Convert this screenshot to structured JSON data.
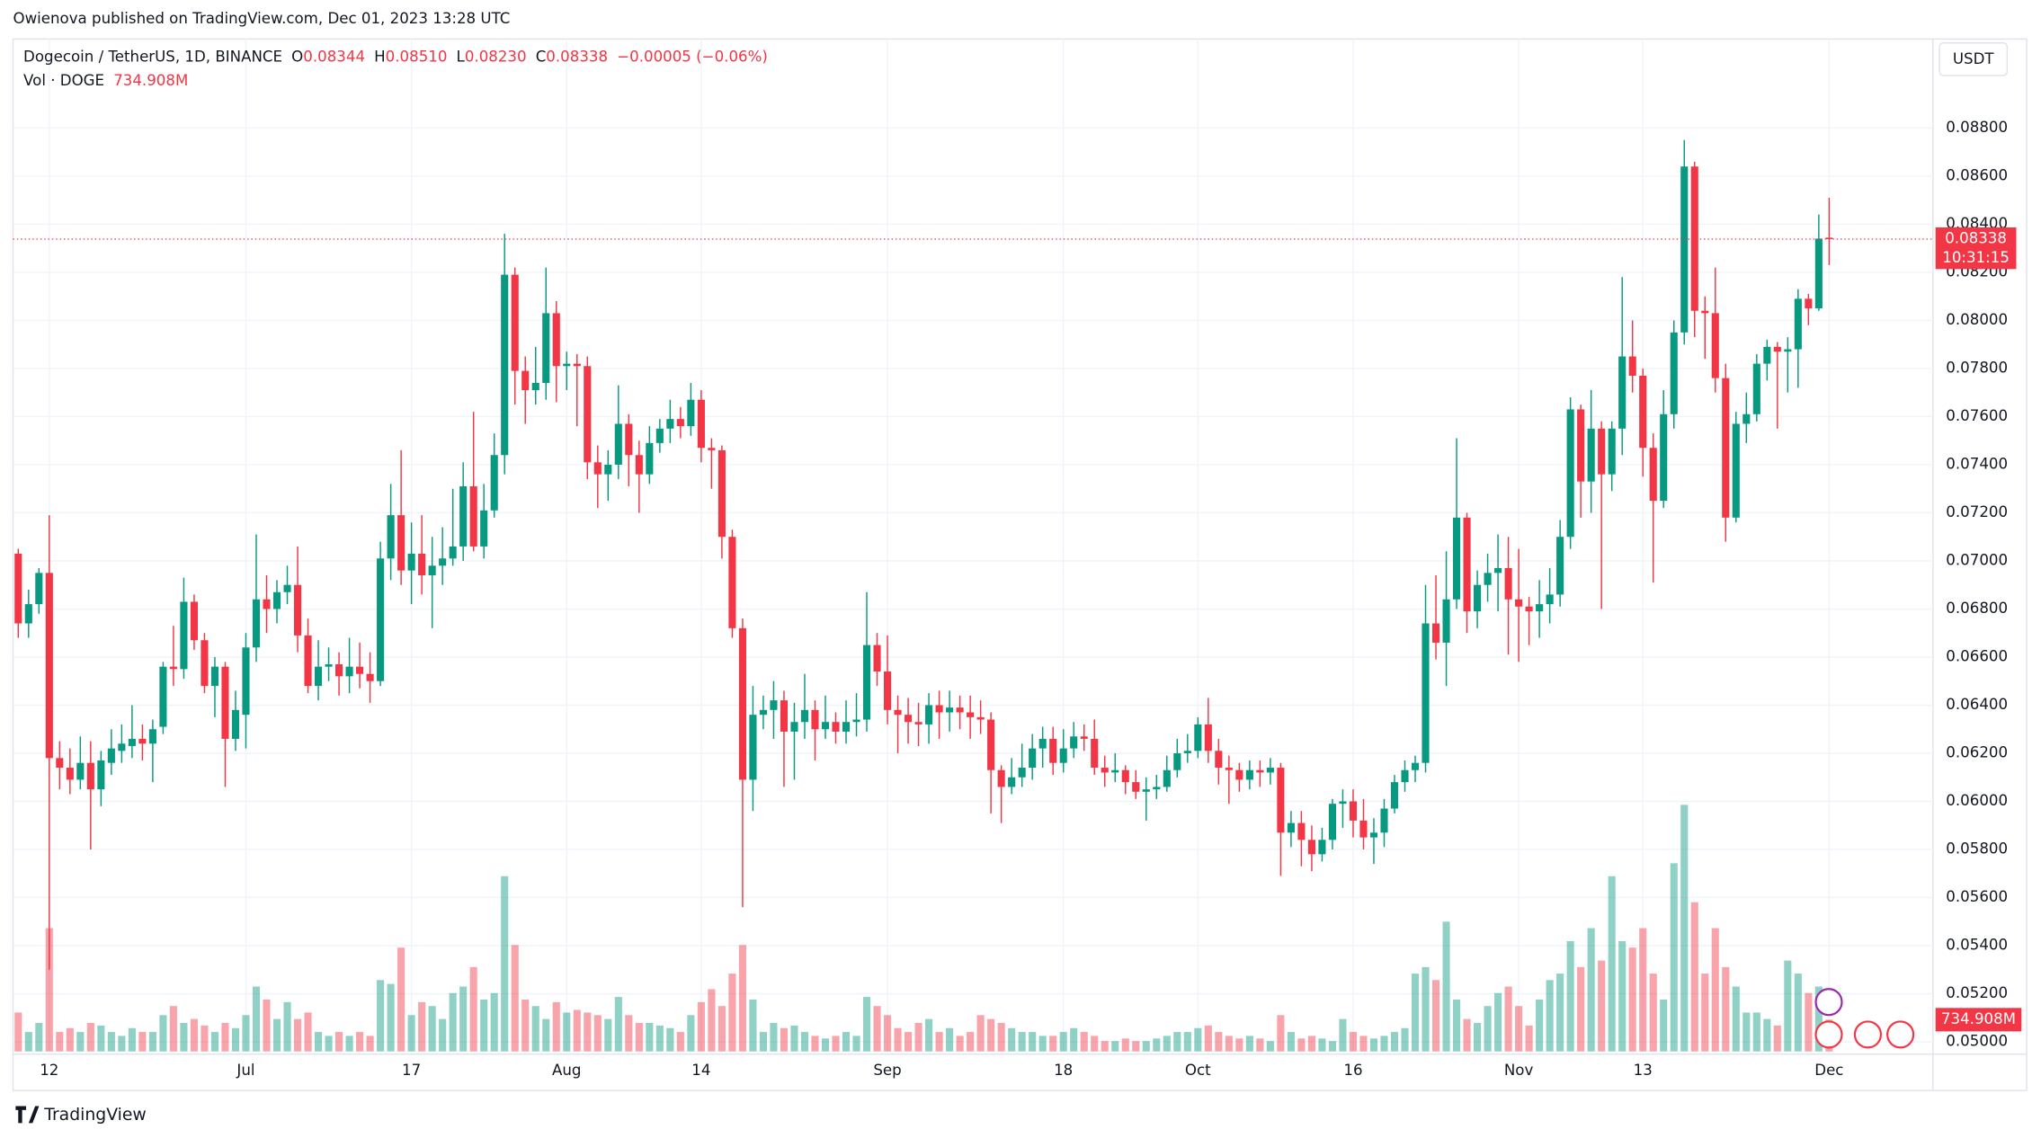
{
  "header": {
    "published": "Owienova published on TradingView.com, Dec 01, 2023 13:28 UTC",
    "brand": "TradingView",
    "currency_button": "USDT"
  },
  "chart_data": {
    "type": "candlestick",
    "symbol": "Dogecoin / TetherUS, 1D, BINANCE",
    "legend_items": [
      {
        "key": "O",
        "value": "0.08344"
      },
      {
        "key": "H",
        "value": "0.08510"
      },
      {
        "key": "L",
        "value": "0.08230"
      },
      {
        "key": "C",
        "value": "0.08338"
      }
    ],
    "change": "−0.00005 (−0.06%)",
    "countdown": "10:31:15",
    "up_color": "#089981",
    "down_color": "#f23645",
    "grid": true,
    "ylim": [
      0.0496,
      0.0917
    ],
    "yticks": [
      {
        "value": 0.05,
        "label": "0.05000"
      },
      {
        "value": 0.052,
        "label": "0.05200"
      },
      {
        "value": 0.054,
        "label": "0.05400"
      },
      {
        "value": 0.056,
        "label": "0.05600"
      },
      {
        "value": 0.058,
        "label": "0.05800"
      },
      {
        "value": 0.06,
        "label": "0.06000"
      },
      {
        "value": 0.062,
        "label": "0.06200"
      },
      {
        "value": 0.064,
        "label": "0.06400"
      },
      {
        "value": 0.066,
        "label": "0.06600"
      },
      {
        "value": 0.068,
        "label": "0.06800"
      },
      {
        "value": 0.07,
        "label": "0.07000"
      },
      {
        "value": 0.072,
        "label": "0.07200"
      },
      {
        "value": 0.074,
        "label": "0.07400"
      },
      {
        "value": 0.076,
        "label": "0.07600"
      },
      {
        "value": 0.078,
        "label": "0.07800"
      },
      {
        "value": 0.08,
        "label": "0.08000"
      },
      {
        "value": 0.082,
        "label": "0.08200"
      },
      {
        "value": 0.084,
        "label": "0.08400"
      },
      {
        "value": 0.086,
        "label": "0.08600"
      },
      {
        "value": 0.088,
        "label": "0.08800"
      }
    ],
    "xticks": [
      {
        "value": 3,
        "label": "12"
      },
      {
        "value": 22,
        "label": "Jul"
      },
      {
        "value": 38,
        "label": "17"
      },
      {
        "value": 53,
        "label": "Aug"
      },
      {
        "value": 66,
        "label": "14"
      },
      {
        "value": 84,
        "label": "Sep"
      },
      {
        "value": 101,
        "label": "18"
      },
      {
        "value": 114,
        "label": "Oct"
      },
      {
        "value": 129,
        "label": "16"
      },
      {
        "value": 145,
        "label": "Nov"
      },
      {
        "value": 157,
        "label": "13"
      },
      {
        "value": 175,
        "label": "Dec"
      }
    ],
    "ohlc": [
      [
        0.0703,
        0.0705,
        0.0668,
        0.0674
      ],
      [
        0.0674,
        0.0688,
        0.0668,
        0.0682
      ],
      [
        0.0682,
        0.0697,
        0.0678,
        0.0695
      ],
      [
        0.0695,
        0.0719,
        0.053,
        0.0618
      ],
      [
        0.0618,
        0.0625,
        0.0605,
        0.0614
      ],
      [
        0.0614,
        0.0622,
        0.0603,
        0.0609
      ],
      [
        0.0609,
        0.0627,
        0.0605,
        0.0616
      ],
      [
        0.0616,
        0.0625,
        0.058,
        0.0605
      ],
      [
        0.0605,
        0.0621,
        0.0598,
        0.0617
      ],
      [
        0.0616,
        0.063,
        0.0611,
        0.0622
      ],
      [
        0.0621,
        0.0632,
        0.0616,
        0.0624
      ],
      [
        0.0623,
        0.064,
        0.0618,
        0.0626
      ],
      [
        0.0626,
        0.0632,
        0.0617,
        0.0624
      ],
      [
        0.0624,
        0.0634,
        0.0608,
        0.063
      ],
      [
        0.0631,
        0.0658,
        0.0628,
        0.0656
      ],
      [
        0.0656,
        0.0673,
        0.0648,
        0.0655
      ],
      [
        0.0655,
        0.0693,
        0.0651,
        0.0683
      ],
      [
        0.0683,
        0.0686,
        0.0663,
        0.0667
      ],
      [
        0.0667,
        0.067,
        0.0645,
        0.0648
      ],
      [
        0.0648,
        0.066,
        0.0635,
        0.0656
      ],
      [
        0.0656,
        0.0658,
        0.0606,
        0.0626
      ],
      [
        0.0626,
        0.0646,
        0.0621,
        0.0638
      ],
      [
        0.0636,
        0.067,
        0.0622,
        0.0664
      ],
      [
        0.0664,
        0.0711,
        0.0658,
        0.0684
      ],
      [
        0.0684,
        0.0694,
        0.067,
        0.068
      ],
      [
        0.068,
        0.0692,
        0.0674,
        0.0687
      ],
      [
        0.0687,
        0.0698,
        0.0682,
        0.069
      ],
      [
        0.069,
        0.0706,
        0.0662,
        0.0669
      ],
      [
        0.0669,
        0.0676,
        0.0645,
        0.0648
      ],
      [
        0.0648,
        0.0667,
        0.0642,
        0.0656
      ],
      [
        0.0656,
        0.0664,
        0.065,
        0.0657
      ],
      [
        0.0657,
        0.0662,
        0.0644,
        0.0652
      ],
      [
        0.0652,
        0.0668,
        0.0645,
        0.0656
      ],
      [
        0.0656,
        0.0666,
        0.0647,
        0.0653
      ],
      [
        0.0653,
        0.0662,
        0.0641,
        0.065
      ],
      [
        0.065,
        0.0708,
        0.0648,
        0.0701
      ],
      [
        0.0701,
        0.0732,
        0.0692,
        0.0719
      ],
      [
        0.0719,
        0.0746,
        0.069,
        0.0696
      ],
      [
        0.0696,
        0.0716,
        0.0682,
        0.0703
      ],
      [
        0.0703,
        0.0719,
        0.0686,
        0.0694
      ],
      [
        0.0694,
        0.071,
        0.0672,
        0.0698
      ],
      [
        0.0698,
        0.0714,
        0.069,
        0.0701
      ],
      [
        0.0701,
        0.073,
        0.0698,
        0.0706
      ],
      [
        0.0706,
        0.0741,
        0.07,
        0.0731
      ],
      [
        0.0731,
        0.0762,
        0.0704,
        0.0706
      ],
      [
        0.0706,
        0.0732,
        0.0701,
        0.0721
      ],
      [
        0.0721,
        0.0753,
        0.0718,
        0.0744
      ],
      [
        0.0744,
        0.0836,
        0.0736,
        0.0819
      ],
      [
        0.0819,
        0.0822,
        0.0765,
        0.0779
      ],
      [
        0.0779,
        0.0785,
        0.0757,
        0.0771
      ],
      [
        0.0771,
        0.0789,
        0.0765,
        0.0774
      ],
      [
        0.0774,
        0.0822,
        0.0767,
        0.0803
      ],
      [
        0.0803,
        0.0808,
        0.0766,
        0.0781
      ],
      [
        0.0781,
        0.0787,
        0.0771,
        0.0782
      ],
      [
        0.0782,
        0.0786,
        0.0756,
        0.0781
      ],
      [
        0.0781,
        0.0785,
        0.0734,
        0.0741
      ],
      [
        0.0741,
        0.0748,
        0.0722,
        0.0736
      ],
      [
        0.0736,
        0.0746,
        0.0725,
        0.074
      ],
      [
        0.074,
        0.0773,
        0.0734,
        0.0757
      ],
      [
        0.0757,
        0.0761,
        0.0731,
        0.0744
      ],
      [
        0.0744,
        0.075,
        0.072,
        0.0736
      ],
      [
        0.0736,
        0.0756,
        0.0732,
        0.0749
      ],
      [
        0.0749,
        0.0759,
        0.0745,
        0.0755
      ],
      [
        0.0755,
        0.0767,
        0.0749,
        0.0759
      ],
      [
        0.0759,
        0.0764,
        0.0751,
        0.0756
      ],
      [
        0.0756,
        0.0774,
        0.0752,
        0.0767
      ],
      [
        0.0767,
        0.0771,
        0.0741,
        0.0747
      ],
      [
        0.0747,
        0.0751,
        0.073,
        0.0746
      ],
      [
        0.0746,
        0.0748,
        0.0701,
        0.071
      ],
      [
        0.071,
        0.0713,
        0.0668,
        0.0672
      ],
      [
        0.0672,
        0.0676,
        0.0556,
        0.0609
      ],
      [
        0.0609,
        0.0648,
        0.0596,
        0.0636
      ],
      [
        0.0636,
        0.0644,
        0.063,
        0.0638
      ],
      [
        0.0638,
        0.065,
        0.0626,
        0.0642
      ],
      [
        0.0642,
        0.0646,
        0.0606,
        0.0629
      ],
      [
        0.0629,
        0.0641,
        0.0609,
        0.0633
      ],
      [
        0.0633,
        0.0653,
        0.0626,
        0.0638
      ],
      [
        0.0638,
        0.0642,
        0.0617,
        0.063
      ],
      [
        0.063,
        0.0644,
        0.0626,
        0.0633
      ],
      [
        0.0633,
        0.0637,
        0.0624,
        0.0629
      ],
      [
        0.0629,
        0.0642,
        0.0624,
        0.0633
      ],
      [
        0.0633,
        0.0645,
        0.0627,
        0.0634
      ],
      [
        0.0634,
        0.0687,
        0.0629,
        0.0665
      ],
      [
        0.0665,
        0.067,
        0.0648,
        0.0654
      ],
      [
        0.0654,
        0.0669,
        0.0632,
        0.0638
      ],
      [
        0.0638,
        0.0644,
        0.062,
        0.0636
      ],
      [
        0.0636,
        0.0643,
        0.0624,
        0.0633
      ],
      [
        0.0633,
        0.0641,
        0.0623,
        0.0632
      ],
      [
        0.0632,
        0.0645,
        0.0624,
        0.064
      ],
      [
        0.064,
        0.0646,
        0.0626,
        0.0637
      ],
      [
        0.0637,
        0.0646,
        0.0629,
        0.0639
      ],
      [
        0.0639,
        0.0644,
        0.063,
        0.0637
      ],
      [
        0.0637,
        0.0644,
        0.0626,
        0.0635
      ],
      [
        0.0635,
        0.0642,
        0.0628,
        0.0634
      ],
      [
        0.0634,
        0.0637,
        0.0595,
        0.0613
      ],
      [
        0.0613,
        0.0615,
        0.0591,
        0.0606
      ],
      [
        0.0606,
        0.0618,
        0.0603,
        0.061
      ],
      [
        0.061,
        0.0624,
        0.0606,
        0.0614
      ],
      [
        0.0614,
        0.0628,
        0.0609,
        0.0622
      ],
      [
        0.0622,
        0.0631,
        0.0614,
        0.0626
      ],
      [
        0.0626,
        0.0631,
        0.0611,
        0.0616
      ],
      [
        0.0616,
        0.063,
        0.0612,
        0.0622
      ],
      [
        0.0622,
        0.0633,
        0.0618,
        0.0627
      ],
      [
        0.0627,
        0.0632,
        0.0621,
        0.0626
      ],
      [
        0.0626,
        0.0634,
        0.0611,
        0.0614
      ],
      [
        0.0614,
        0.0619,
        0.0606,
        0.0612
      ],
      [
        0.0612,
        0.062,
        0.0608,
        0.0613
      ],
      [
        0.0613,
        0.0615,
        0.0603,
        0.0608
      ],
      [
        0.0608,
        0.0613,
        0.0601,
        0.0604
      ],
      [
        0.0604,
        0.061,
        0.0592,
        0.0605
      ],
      [
        0.0605,
        0.0611,
        0.0601,
        0.0606
      ],
      [
        0.0606,
        0.0619,
        0.0604,
        0.0613
      ],
      [
        0.0613,
        0.0626,
        0.061,
        0.062
      ],
      [
        0.062,
        0.0628,
        0.0616,
        0.0621
      ],
      [
        0.0621,
        0.0635,
        0.0618,
        0.0632
      ],
      [
        0.0632,
        0.0643,
        0.0616,
        0.0621
      ],
      [
        0.0621,
        0.0626,
        0.0607,
        0.0614
      ],
      [
        0.0614,
        0.0619,
        0.0599,
        0.0613
      ],
      [
        0.0613,
        0.0616,
        0.0604,
        0.0609
      ],
      [
        0.0609,
        0.0617,
        0.0605,
        0.0613
      ],
      [
        0.0613,
        0.0617,
        0.0606,
        0.0612
      ],
      [
        0.0612,
        0.0618,
        0.0607,
        0.0614
      ],
      [
        0.0614,
        0.0616,
        0.0569,
        0.0587
      ],
      [
        0.0587,
        0.0596,
        0.0581,
        0.0591
      ],
      [
        0.0591,
        0.0596,
        0.0573,
        0.0584
      ],
      [
        0.0584,
        0.059,
        0.0571,
        0.0578
      ],
      [
        0.0578,
        0.0589,
        0.0575,
        0.0584
      ],
      [
        0.0584,
        0.0601,
        0.058,
        0.0599
      ],
      [
        0.0599,
        0.0605,
        0.0589,
        0.06
      ],
      [
        0.06,
        0.0605,
        0.0585,
        0.0592
      ],
      [
        0.0592,
        0.0601,
        0.058,
        0.0585
      ],
      [
        0.0585,
        0.0593,
        0.0574,
        0.0587
      ],
      [
        0.0587,
        0.0601,
        0.0581,
        0.0597
      ],
      [
        0.0597,
        0.0611,
        0.0595,
        0.0608
      ],
      [
        0.0608,
        0.0617,
        0.0604,
        0.0613
      ],
      [
        0.0613,
        0.0619,
        0.0608,
        0.0616
      ],
      [
        0.0616,
        0.069,
        0.0612,
        0.0674
      ],
      [
        0.0674,
        0.0694,
        0.0659,
        0.0666
      ],
      [
        0.0666,
        0.0704,
        0.0648,
        0.0684
      ],
      [
        0.0684,
        0.0751,
        0.068,
        0.0718
      ],
      [
        0.0718,
        0.072,
        0.067,
        0.0679
      ],
      [
        0.0679,
        0.0696,
        0.0672,
        0.069
      ],
      [
        0.069,
        0.0703,
        0.0683,
        0.0695
      ],
      [
        0.0695,
        0.0711,
        0.0679,
        0.0697
      ],
      [
        0.0697,
        0.071,
        0.0661,
        0.0684
      ],
      [
        0.0684,
        0.0705,
        0.0658,
        0.0681
      ],
      [
        0.0681,
        0.0685,
        0.0665,
        0.0679
      ],
      [
        0.0679,
        0.0692,
        0.0668,
        0.0682
      ],
      [
        0.0682,
        0.0697,
        0.0674,
        0.0686
      ],
      [
        0.0686,
        0.0717,
        0.0681,
        0.071
      ],
      [
        0.071,
        0.0768,
        0.0705,
        0.0763
      ],
      [
        0.0763,
        0.0765,
        0.0718,
        0.0733
      ],
      [
        0.0733,
        0.0771,
        0.072,
        0.0755
      ],
      [
        0.0755,
        0.0758,
        0.068,
        0.0736
      ],
      [
        0.0736,
        0.0758,
        0.0729,
        0.0755
      ],
      [
        0.0755,
        0.0818,
        0.0744,
        0.0785
      ],
      [
        0.0785,
        0.08,
        0.077,
        0.0777
      ],
      [
        0.0777,
        0.078,
        0.0735,
        0.0747
      ],
      [
        0.0747,
        0.0753,
        0.0691,
        0.0725
      ],
      [
        0.0725,
        0.0771,
        0.0722,
        0.0761
      ],
      [
        0.0761,
        0.08,
        0.0755,
        0.0795
      ],
      [
        0.0795,
        0.0875,
        0.079,
        0.0864
      ],
      [
        0.0864,
        0.0866,
        0.0793,
        0.0804
      ],
      [
        0.0804,
        0.081,
        0.0784,
        0.0803
      ],
      [
        0.0803,
        0.0822,
        0.077,
        0.0776
      ],
      [
        0.0776,
        0.0782,
        0.0708,
        0.0718
      ],
      [
        0.0718,
        0.0762,
        0.0716,
        0.0757
      ],
      [
        0.0757,
        0.077,
        0.0749,
        0.0761
      ],
      [
        0.0761,
        0.0786,
        0.0758,
        0.0782
      ],
      [
        0.0782,
        0.0792,
        0.0775,
        0.0789
      ],
      [
        0.0789,
        0.0791,
        0.0755,
        0.0787
      ],
      [
        0.0787,
        0.0793,
        0.077,
        0.0788
      ],
      [
        0.0788,
        0.0813,
        0.0772,
        0.0809
      ],
      [
        0.0809,
        0.0811,
        0.0798,
        0.0805
      ],
      [
        0.0805,
        0.0844,
        0.0804,
        0.0834
      ],
      [
        0.08344,
        0.0851,
        0.0823,
        0.08338
      ]
    ],
    "volume": {
      "name": "Vol · DOGE",
      "last_label": "734.908M",
      "ylim": [
        0,
        8000
      ],
      "values": [
        900,
        450,
        660,
        2850,
        450,
        540,
        450,
        660,
        600,
        450,
        360,
        540,
        450,
        450,
        840,
        1050,
        660,
        750,
        600,
        450,
        660,
        540,
        840,
        1500,
        1200,
        750,
        1140,
        750,
        900,
        450,
        360,
        450,
        360,
        450,
        360,
        1650,
        1560,
        2400,
        840,
        1140,
        1050,
        750,
        1350,
        1500,
        1950,
        1200,
        1350,
        4050,
        2460,
        1200,
        1050,
        750,
        1140,
        900,
        960,
        900,
        840,
        750,
        1260,
        840,
        660,
        660,
        600,
        540,
        450,
        840,
        1140,
        1440,
        1050,
        1800,
        2460,
        1200,
        450,
        660,
        540,
        600,
        450,
        360,
        300,
        360,
        450,
        360,
        1260,
        1050,
        840,
        540,
        450,
        660,
        750,
        450,
        540,
        360,
        450,
        840,
        750,
        660,
        540,
        450,
        450,
        360,
        360,
        450,
        540,
        450,
        360,
        240,
        240,
        300,
        240,
        240,
        300,
        360,
        450,
        450,
        540,
        600,
        450,
        360,
        300,
        360,
        300,
        240,
        840,
        450,
        300,
        360,
        300,
        240,
        750,
        450,
        360,
        300,
        360,
        450,
        540,
        1800,
        1950,
        1650,
        3000,
        1200,
        750,
        660,
        1050,
        1350,
        1500,
        1050,
        600,
        1200,
        1650,
        1800,
        2550,
        1950,
        2850,
        2100,
        4050,
        2550,
        2400,
        2850,
        1800,
        1200,
        4350,
        5700,
        3450,
        1800,
        2850,
        1950,
        1500,
        900,
        900,
        750,
        600,
        2100,
        1800,
        1350,
        1500,
        734.908
      ]
    }
  }
}
